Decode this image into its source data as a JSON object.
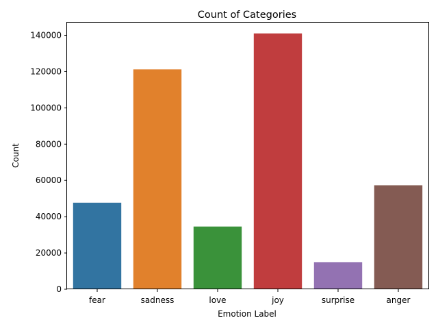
{
  "chart_data": {
    "type": "bar",
    "title": "Count of Categories",
    "xlabel": "Emotion Label",
    "ylabel": "Count",
    "categories": [
      "fear",
      "sadness",
      "love",
      "joy",
      "surprise",
      "anger"
    ],
    "values": [
      47700,
      121200,
      34550,
      141050,
      14950,
      57300
    ],
    "colors": [
      "#3274a1",
      "#e1812c",
      "#3a923a",
      "#c03d3e",
      "#9372b2",
      "#845b53"
    ],
    "ylim": [
      0,
      147000
    ],
    "yticks": [
      0,
      20000,
      40000,
      60000,
      80000,
      100000,
      120000,
      140000
    ],
    "grid": false,
    "legend": "none"
  }
}
